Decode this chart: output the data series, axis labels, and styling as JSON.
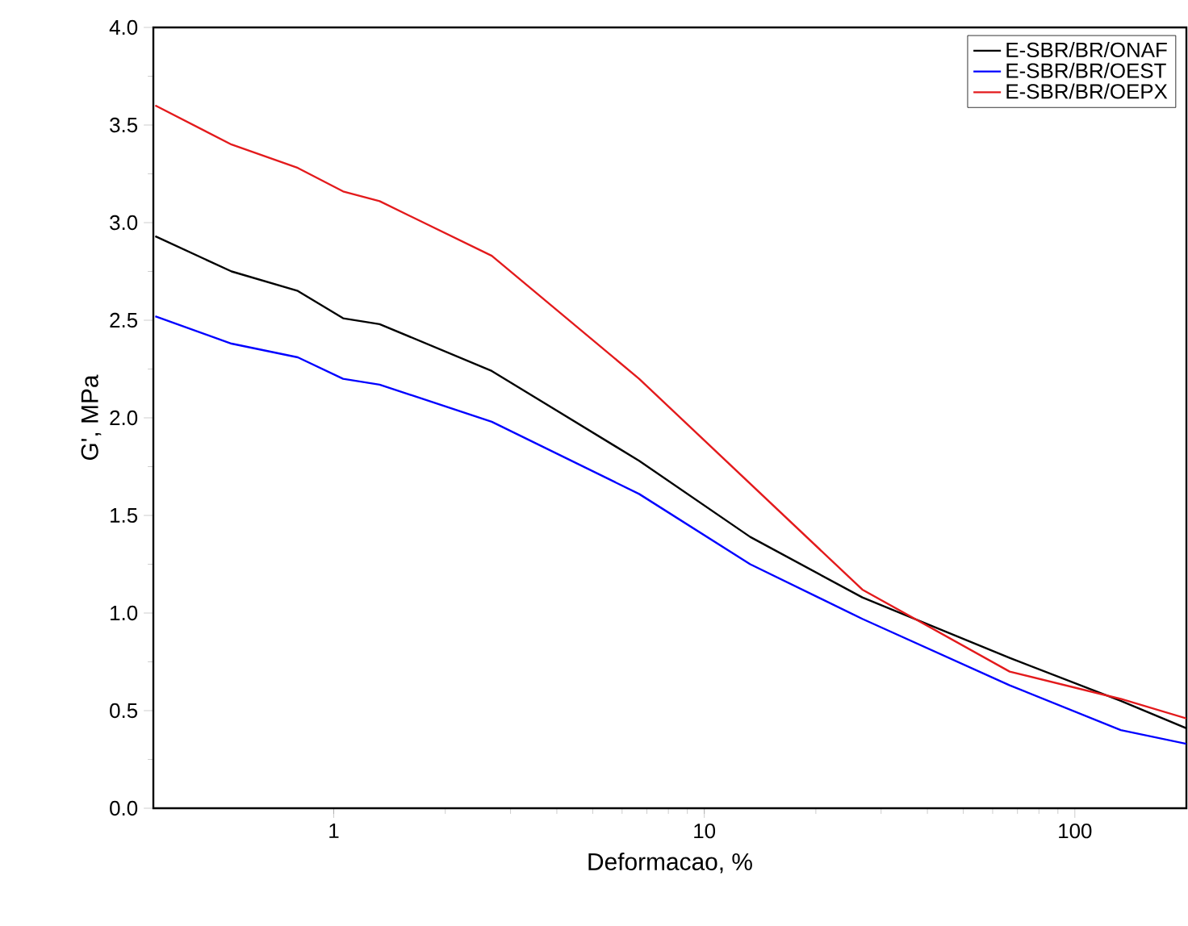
{
  "chart_data": {
    "type": "line",
    "xlabel": "Deformacao, %",
    "ylabel": "G', MPa",
    "log": "x",
    "xlim": [
      0.326,
      200
    ],
    "ylim": [
      0,
      4
    ],
    "xticks": [
      1,
      10,
      100
    ],
    "yticks": [
      {
        "value": 0,
        "label": "0.0"
      },
      {
        "value": 0.5,
        "label": "0.5"
      },
      {
        "value": 1,
        "label": "1.0"
      },
      {
        "value": 1.5,
        "label": "1.5"
      },
      {
        "value": 2,
        "label": "2.0"
      },
      {
        "value": 2.5,
        "label": "2.5"
      },
      {
        "value": 3,
        "label": "3.0"
      },
      {
        "value": 3.5,
        "label": "3.5"
      },
      {
        "value": 4,
        "label": "4.0"
      }
    ],
    "grid": false,
    "legend": "top right",
    "marker": "none",
    "line_style": "solid",
    "x": [
      0.33,
      0.53,
      0.8,
      1.06,
      1.33,
      2.67,
      6.67,
      13.3,
      26.7,
      66.7,
      133,
      200
    ],
    "series": [
      {
        "name": "E-SBR/BR/ONAF",
        "color": "#000000",
        "values": [
          2.93,
          2.75,
          2.65,
          2.51,
          2.48,
          2.24,
          1.78,
          1.39,
          1.08,
          0.77,
          0.55,
          0.41
        ]
      },
      {
        "name": "E-SBR/BR/OEST",
        "color": "#0000ff",
        "values": [
          2.52,
          2.38,
          2.31,
          2.2,
          2.17,
          1.98,
          1.61,
          1.25,
          0.97,
          0.63,
          0.4,
          0.33
        ]
      },
      {
        "name": "E-SBR/BR/OEPX",
        "color": "#e31a1c",
        "x": [
          0.33,
          0.53,
          0.8,
          1.06,
          1.33,
          2.67,
          6.67,
          26.7,
          66.7,
          133,
          200
        ],
        "values": [
          3.6,
          3.4,
          3.28,
          3.16,
          3.11,
          2.83,
          2.2,
          1.12,
          0.7,
          0.56,
          0.46
        ]
      }
    ]
  }
}
